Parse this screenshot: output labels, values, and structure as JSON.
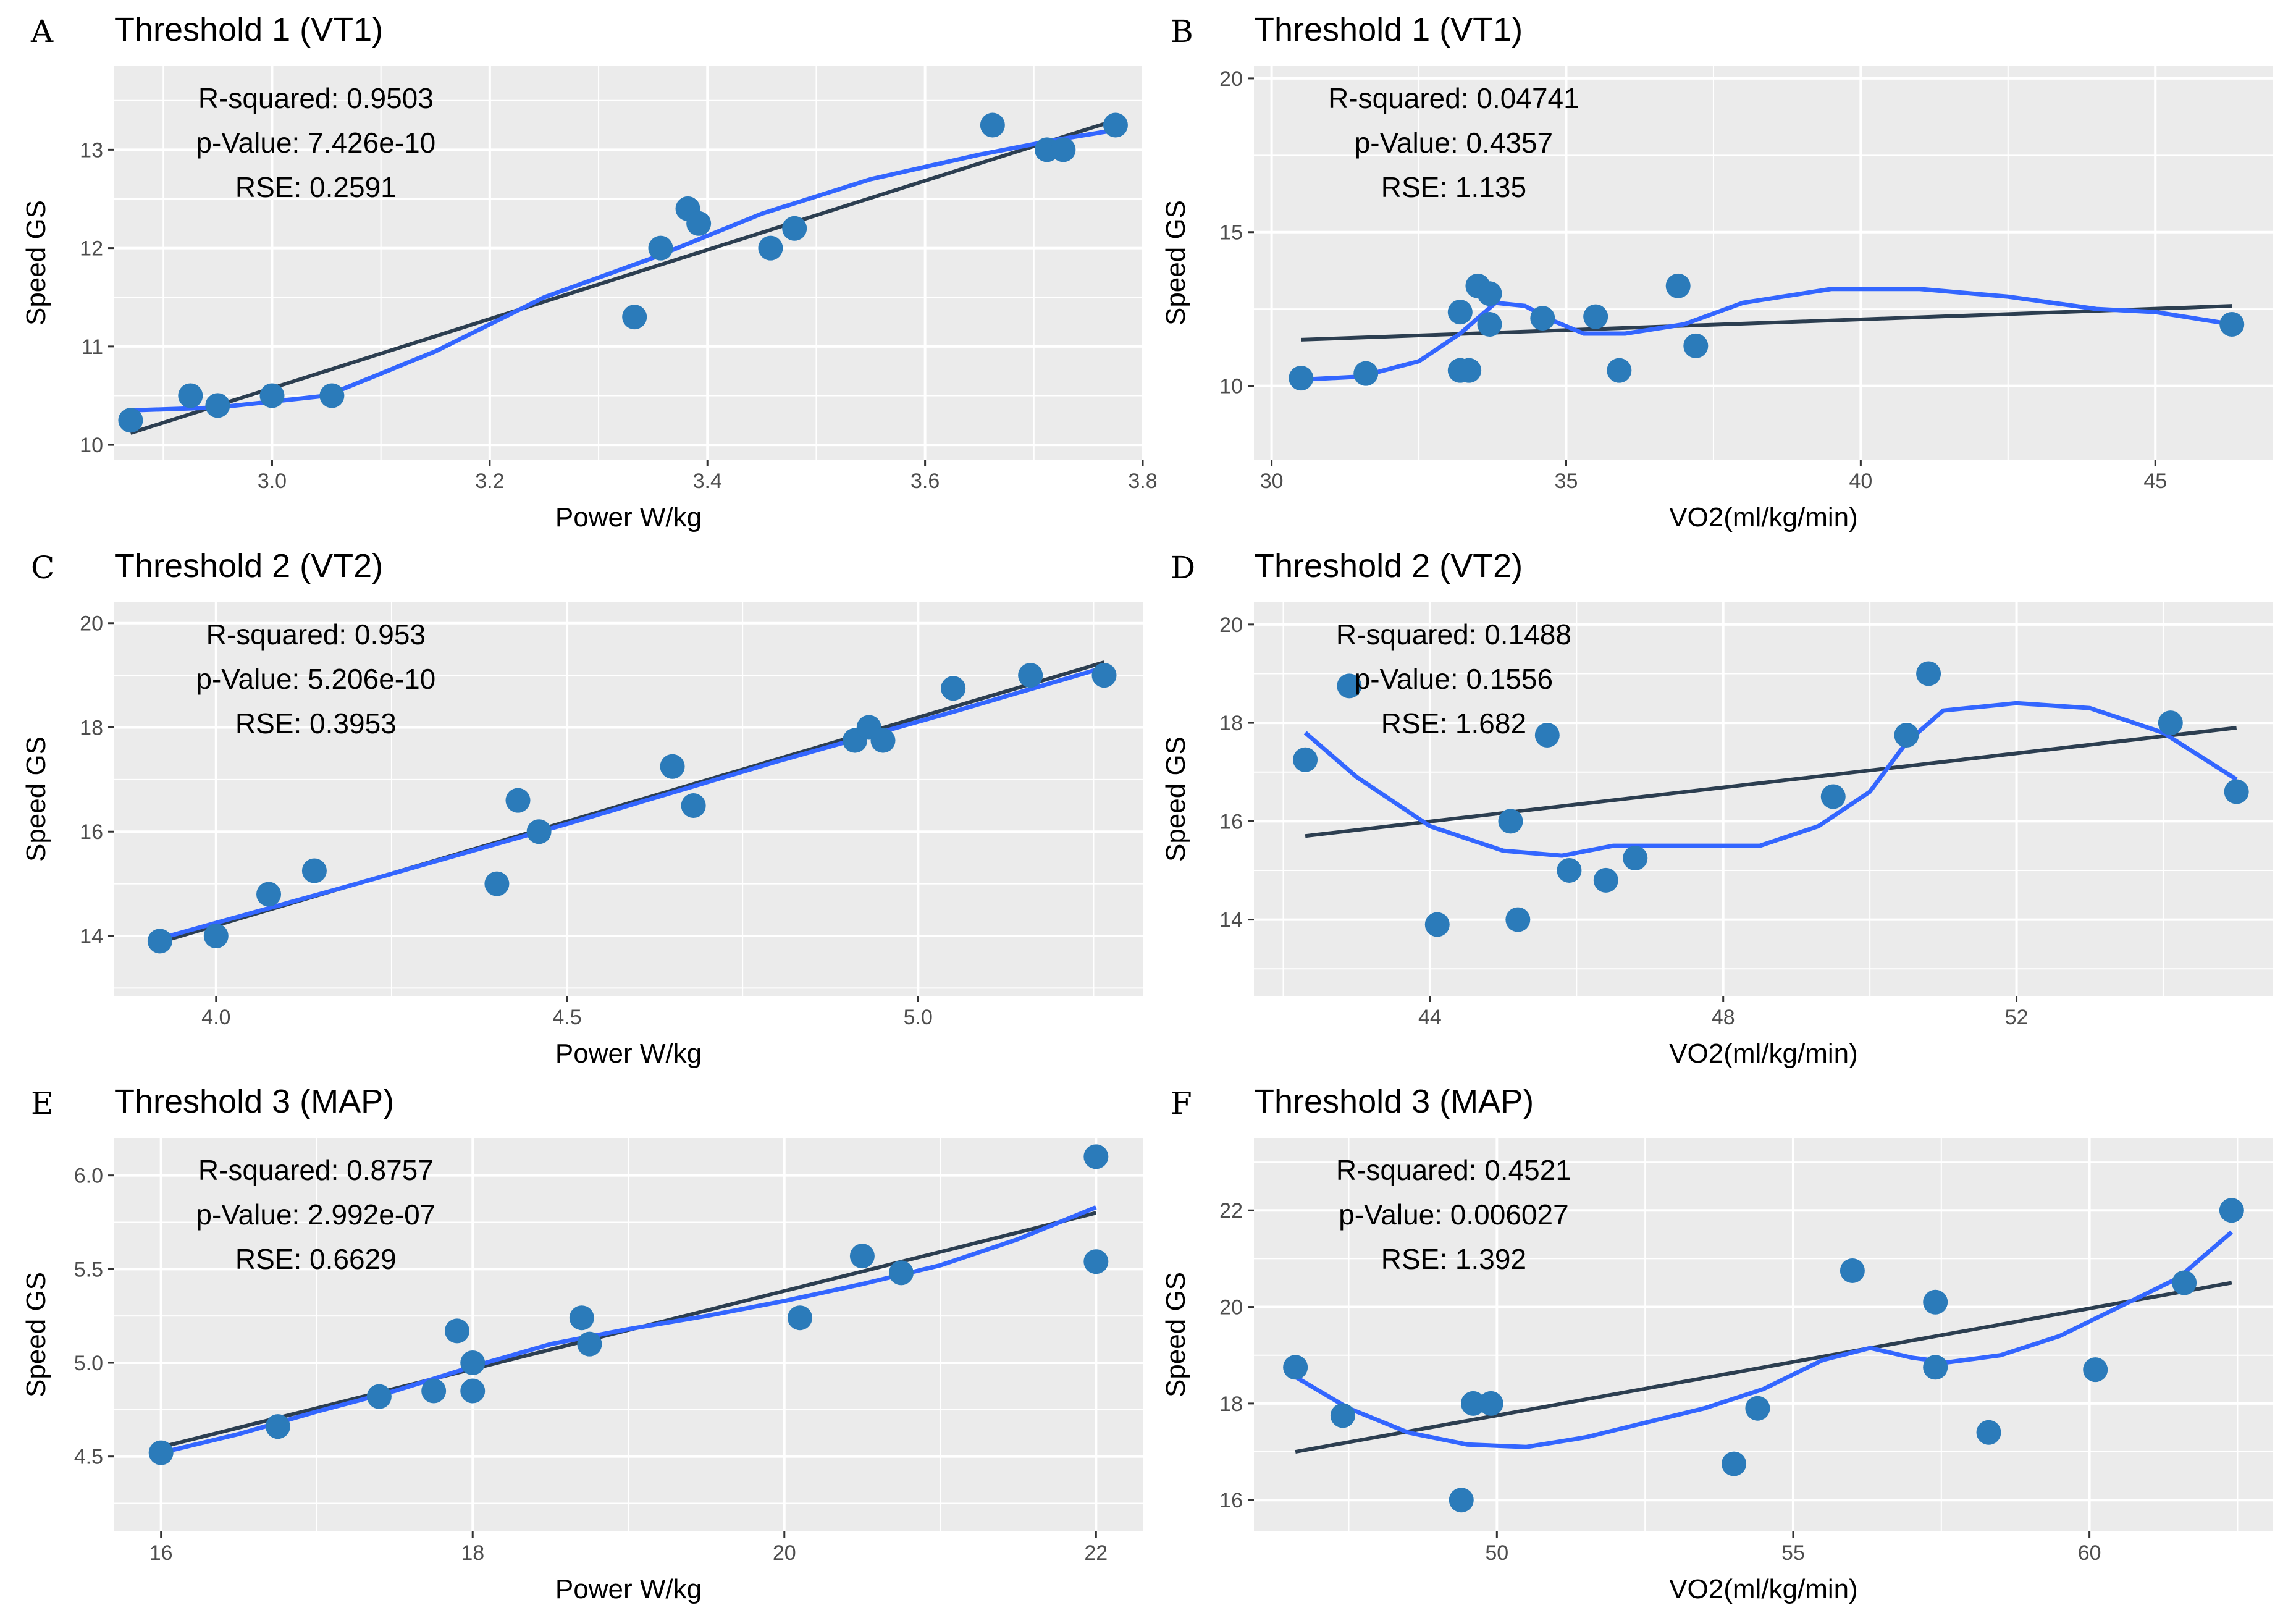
{
  "colors": {
    "panel_bg": "#ebebeb",
    "grid": "#ffffff",
    "point": "#2b7bba",
    "fit_line": "#2c3e50",
    "smooth_line": "#3366ff"
  },
  "chart_data": [
    {
      "letter": "A",
      "type": "scatter",
      "title": "Threshold 1 (VT1)",
      "xlabel": "Power W/kg",
      "ylabel": "Speed GS",
      "xlim": [
        2.855,
        3.8
      ],
      "ylim": [
        9.85,
        13.85
      ],
      "xticks": [
        3.0,
        3.2,
        3.4,
        3.6,
        3.8
      ],
      "xtick_labels": [
        "3.0",
        "3.2",
        "3.4",
        "3.6",
        "3.8"
      ],
      "yticks": [
        10,
        11,
        12,
        13
      ],
      "ytick_labels": [
        "10",
        "11",
        "12",
        "13"
      ],
      "annotations": [
        "R-squared: 0.9503",
        "p-Value: 7.426e-10",
        "RSE: 0.2591"
      ],
      "points": [
        [
          2.87,
          10.25
        ],
        [
          2.925,
          10.5
        ],
        [
          2.95,
          10.4
        ],
        [
          3.0,
          10.5
        ],
        [
          3.055,
          10.5
        ],
        [
          3.333,
          11.3
        ],
        [
          3.357,
          12.0
        ],
        [
          3.382,
          12.4
        ],
        [
          3.392,
          12.25
        ],
        [
          3.458,
          12.0
        ],
        [
          3.48,
          12.2
        ],
        [
          3.662,
          13.25
        ],
        [
          3.712,
          13.0
        ],
        [
          3.727,
          13.0
        ],
        [
          3.775,
          13.25
        ]
      ],
      "fit": [
        [
          2.87,
          10.12
        ],
        [
          3.775,
          13.3
        ]
      ],
      "smooth": [
        [
          2.87,
          10.35
        ],
        [
          2.95,
          10.38
        ],
        [
          3.05,
          10.5
        ],
        [
          3.15,
          10.95
        ],
        [
          3.25,
          11.5
        ],
        [
          3.35,
          11.9
        ],
        [
          3.45,
          12.35
        ],
        [
          3.55,
          12.7
        ],
        [
          3.65,
          12.95
        ],
        [
          3.72,
          13.1
        ],
        [
          3.775,
          13.2
        ]
      ]
    },
    {
      "letter": "B",
      "type": "scatter",
      "title": "Threshold 1 (VT1)",
      "xlabel": "VO2(ml/kg/min)",
      "ylabel": "Speed GS",
      "xlim": [
        29.7,
        47.0
      ],
      "ylim": [
        7.6,
        20.4
      ],
      "xticks": [
        30,
        35,
        40,
        45
      ],
      "xtick_labels": [
        "30",
        "35",
        "40",
        "45"
      ],
      "yticks": [
        10,
        15,
        20
      ],
      "ytick_labels": [
        "10",
        "15",
        "20"
      ],
      "annotations": [
        "R-squared: 0.04741",
        "p-Value: 0.4357",
        "RSE: 1.135"
      ],
      "points": [
        [
          30.5,
          10.25
        ],
        [
          31.6,
          10.4
        ],
        [
          33.2,
          12.4
        ],
        [
          33.2,
          10.5
        ],
        [
          33.35,
          10.5
        ],
        [
          33.5,
          13.25
        ],
        [
          33.7,
          13.0
        ],
        [
          33.7,
          12.0
        ],
        [
          34.6,
          12.2
        ],
        [
          35.5,
          12.25
        ],
        [
          35.9,
          10.5
        ],
        [
          36.9,
          13.25
        ],
        [
          37.2,
          11.3
        ],
        [
          46.3,
          12.0
        ]
      ],
      "fit": [
        [
          30.5,
          11.5
        ],
        [
          46.3,
          12.6
        ]
      ],
      "smooth": [
        [
          30.5,
          10.2
        ],
        [
          31.5,
          10.3
        ],
        [
          32.5,
          10.8
        ],
        [
          33.2,
          11.7
        ],
        [
          33.8,
          12.7
        ],
        [
          34.3,
          12.6
        ],
        [
          34.8,
          12.1
        ],
        [
          35.3,
          11.7
        ],
        [
          36.0,
          11.7
        ],
        [
          37.0,
          12.0
        ],
        [
          38.0,
          12.7
        ],
        [
          39.5,
          13.15
        ],
        [
          41.0,
          13.15
        ],
        [
          42.5,
          12.9
        ],
        [
          44.0,
          12.5
        ],
        [
          45.0,
          12.4
        ],
        [
          46.3,
          12.0
        ]
      ]
    },
    {
      "letter": "C",
      "type": "scatter",
      "title": "Threshold 2 (VT2)",
      "xlabel": "Power W/kg",
      "ylabel": "Speed GS",
      "xlim": [
        3.855,
        5.32
      ],
      "ylim": [
        12.85,
        20.4
      ],
      "xticks": [
        4.0,
        4.5,
        5.0
      ],
      "xtick_labels": [
        "4.0",
        "4.5",
        "5.0"
      ],
      "yticks": [
        14,
        16,
        18,
        20
      ],
      "ytick_labels": [
        "14",
        "16",
        "18",
        "20"
      ],
      "annotations": [
        "R-squared: 0.953",
        "p-Value: 5.206e-10",
        "RSE: 0.3953"
      ],
      "points": [
        [
          3.92,
          13.9
        ],
        [
          4.0,
          14.0
        ],
        [
          4.075,
          14.8
        ],
        [
          4.14,
          15.25
        ],
        [
          4.4,
          15.0
        ],
        [
          4.43,
          16.6
        ],
        [
          4.46,
          16.0
        ],
        [
          4.65,
          17.25
        ],
        [
          4.68,
          16.5
        ],
        [
          4.91,
          17.75
        ],
        [
          4.93,
          18.0
        ],
        [
          4.95,
          17.75
        ],
        [
          5.05,
          18.75
        ],
        [
          5.16,
          19.0
        ],
        [
          5.265,
          19.0
        ]
      ],
      "fit": [
        [
          3.92,
          13.88
        ],
        [
          5.265,
          19.25
        ]
      ],
      "smooth": [
        [
          3.92,
          13.95
        ],
        [
          4.2,
          15.0
        ],
        [
          4.5,
          16.15
        ],
        [
          4.8,
          17.35
        ],
        [
          5.05,
          18.3
        ],
        [
          5.265,
          19.15
        ]
      ]
    },
    {
      "letter": "D",
      "type": "scatter",
      "title": "Threshold 2 (VT2)",
      "xlabel": "VO2(ml/kg/min)",
      "ylabel": "Speed GS",
      "xlim": [
        41.6,
        55.5
      ],
      "ylim": [
        12.45,
        20.45
      ],
      "xticks": [
        44,
        48,
        52
      ],
      "xtick_labels": [
        "44",
        "48",
        "52"
      ],
      "yticks": [
        14,
        16,
        18,
        20
      ],
      "ytick_labels": [
        "14",
        "16",
        "18",
        "20"
      ],
      "annotations": [
        "R-squared: 0.1488",
        "p-Value: 0.1556",
        "RSE: 1.682"
      ],
      "points": [
        [
          42.3,
          17.25
        ],
        [
          42.9,
          18.75
        ],
        [
          44.1,
          13.9
        ],
        [
          45.1,
          16.0
        ],
        [
          45.2,
          14.0
        ],
        [
          45.6,
          17.75
        ],
        [
          45.9,
          15.0
        ],
        [
          46.4,
          14.8
        ],
        [
          46.8,
          15.25
        ],
        [
          49.5,
          16.5
        ],
        [
          50.5,
          17.75
        ],
        [
          50.8,
          19.0
        ],
        [
          54.1,
          18.0
        ],
        [
          55.0,
          16.6
        ]
      ],
      "fit": [
        [
          42.3,
          15.7
        ],
        [
          55.0,
          17.9
        ]
      ],
      "smooth": [
        [
          42.3,
          17.8
        ],
        [
          43.0,
          16.9
        ],
        [
          44.0,
          15.9
        ],
        [
          45.0,
          15.4
        ],
        [
          45.8,
          15.3
        ],
        [
          46.5,
          15.5
        ],
        [
          47.5,
          15.5
        ],
        [
          48.5,
          15.5
        ],
        [
          49.3,
          15.9
        ],
        [
          50.0,
          16.6
        ],
        [
          50.5,
          17.6
        ],
        [
          51.0,
          18.25
        ],
        [
          52.0,
          18.4
        ],
        [
          53.0,
          18.3
        ],
        [
          54.0,
          17.8
        ],
        [
          55.0,
          16.85
        ]
      ]
    },
    {
      "letter": "E",
      "type": "scatter",
      "title": "Threshold 3 (MAP)",
      "xlabel": "Power W/kg",
      "ylabel": "Speed GS",
      "xlim": [
        15.7,
        22.3
      ],
      "ylim": [
        4.1,
        6.2
      ],
      "xticks": [
        16,
        18,
        20,
        22
      ],
      "xtick_labels": [
        "16",
        "18",
        "20",
        "22"
      ],
      "yticks": [
        4.5,
        5.0,
        5.5,
        6.0
      ],
      "ytick_labels": [
        "4.5",
        "5.0",
        "5.5",
        "6.0"
      ],
      "annotations": [
        "R-squared: 0.8757",
        "p-Value: 2.992e-07",
        "RSE: 0.6629"
      ],
      "points": [
        [
          16.0,
          4.52
        ],
        [
          16.75,
          4.66
        ],
        [
          17.4,
          4.82
        ],
        [
          17.75,
          4.85
        ],
        [
          17.9,
          5.17
        ],
        [
          18.0,
          4.85
        ],
        [
          18.0,
          5.0
        ],
        [
          18.7,
          5.24
        ],
        [
          18.75,
          5.1
        ],
        [
          20.1,
          5.24
        ],
        [
          20.5,
          5.57
        ],
        [
          20.75,
          5.48
        ],
        [
          22.0,
          6.1
        ],
        [
          22.0,
          5.54
        ]
      ],
      "fit": [
        [
          16.0,
          4.55
        ],
        [
          22.0,
          5.8
        ]
      ],
      "smooth": [
        [
          16.0,
          4.52
        ],
        [
          16.5,
          4.62
        ],
        [
          17.0,
          4.74
        ],
        [
          17.5,
          4.85
        ],
        [
          18.0,
          4.98
        ],
        [
          18.5,
          5.1
        ],
        [
          19.0,
          5.18
        ],
        [
          19.5,
          5.25
        ],
        [
          20.0,
          5.33
        ],
        [
          20.5,
          5.42
        ],
        [
          21.0,
          5.52
        ],
        [
          21.5,
          5.66
        ],
        [
          22.0,
          5.83
        ]
      ]
    },
    {
      "letter": "F",
      "type": "scatter",
      "title": "Threshold 3 (MAP)",
      "xlabel": "VO2(ml/kg/min)",
      "ylabel": "Speed GS",
      "xlim": [
        45.9,
        63.1
      ],
      "ylim": [
        15.35,
        23.5
      ],
      "xticks": [
        50,
        55,
        60
      ],
      "xtick_labels": [
        "50",
        "55",
        "60"
      ],
      "yticks": [
        16,
        18,
        20,
        22
      ],
      "ytick_labels": [
        "16",
        "18",
        "20",
        "22"
      ],
      "annotations": [
        "R-squared: 0.4521",
        "p-Value: 0.006027",
        "RSE: 1.392"
      ],
      "points": [
        [
          46.6,
          18.75
        ],
        [
          47.4,
          17.75
        ],
        [
          49.4,
          16.0
        ],
        [
          49.6,
          18.0
        ],
        [
          49.9,
          18.0
        ],
        [
          54.0,
          16.75
        ],
        [
          54.4,
          17.9
        ],
        [
          56.0,
          20.75
        ],
        [
          57.4,
          20.1
        ],
        [
          57.4,
          18.75
        ],
        [
          58.3,
          17.4
        ],
        [
          60.1,
          18.7
        ],
        [
          61.6,
          20.5
        ],
        [
          62.4,
          22.0
        ]
      ],
      "fit": [
        [
          46.6,
          17.0
        ],
        [
          62.4,
          20.5
        ]
      ],
      "smooth": [
        [
          46.6,
          18.55
        ],
        [
          47.5,
          17.9
        ],
        [
          48.5,
          17.4
        ],
        [
          49.5,
          17.15
        ],
        [
          50.5,
          17.1
        ],
        [
          51.5,
          17.3
        ],
        [
          52.5,
          17.6
        ],
        [
          53.5,
          17.9
        ],
        [
          54.5,
          18.3
        ],
        [
          55.5,
          18.9
        ],
        [
          56.3,
          19.15
        ],
        [
          57.0,
          18.95
        ],
        [
          57.6,
          18.85
        ],
        [
          58.5,
          19.0
        ],
        [
          59.5,
          19.4
        ],
        [
          60.5,
          20.0
        ],
        [
          61.5,
          20.6
        ],
        [
          62.4,
          21.55
        ]
      ]
    }
  ]
}
